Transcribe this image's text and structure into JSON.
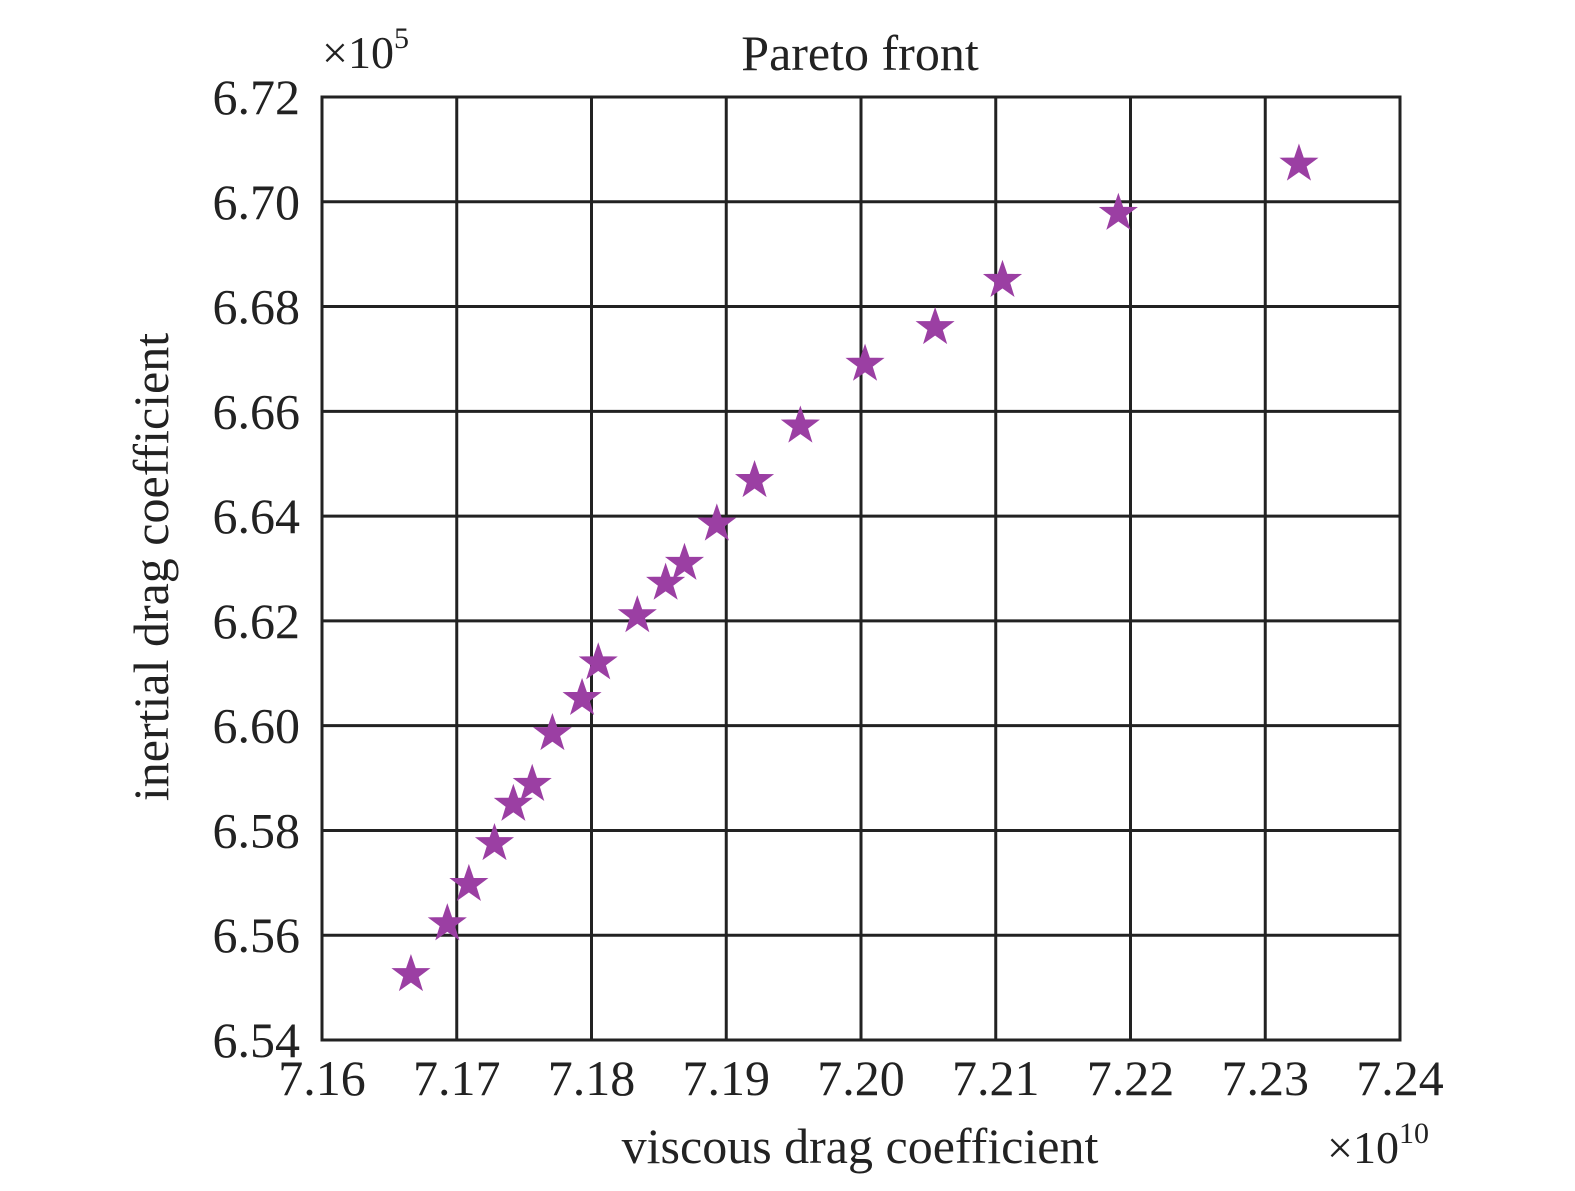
{
  "chart_data": {
    "type": "scatter",
    "title": "Pareto front",
    "xlabel": "viscous drag coefficient",
    "ylabel": "inertial drag coefficient",
    "x_multiplier": {
      "base": "×10",
      "exponent": "10"
    },
    "y_multiplier": {
      "base": "×10",
      "exponent": "5"
    },
    "xlim": [
      7.16,
      7.24
    ],
    "ylim": [
      6.54,
      6.72
    ],
    "x_ticks": [
      "7.16",
      "7.17",
      "7.18",
      "7.19",
      "7.20",
      "7.21",
      "7.22",
      "7.23",
      "7.24"
    ],
    "y_ticks": [
      "6.54",
      "6.56",
      "6.58",
      "6.60",
      "6.62",
      "6.64",
      "6.66",
      "6.68",
      "6.70",
      "6.72"
    ],
    "grid": true,
    "marker": "star",
    "marker_color": "#9b3fa3",
    "series": [
      {
        "points": [
          {
            "x": 7.1666,
            "y": 6.5525
          },
          {
            "x": 7.1693,
            "y": 6.5622
          },
          {
            "x": 7.1709,
            "y": 6.5697
          },
          {
            "x": 7.1728,
            "y": 6.5775
          },
          {
            "x": 7.1742,
            "y": 6.585
          },
          {
            "x": 7.1756,
            "y": 6.5888
          },
          {
            "x": 7.1771,
            "y": 6.5985
          },
          {
            "x": 7.1793,
            "y": 6.6052
          },
          {
            "x": 7.1805,
            "y": 6.612
          },
          {
            "x": 7.1834,
            "y": 6.621
          },
          {
            "x": 7.1855,
            "y": 6.6272
          },
          {
            "x": 7.1869,
            "y": 6.631
          },
          {
            "x": 7.1893,
            "y": 6.6385
          },
          {
            "x": 7.1921,
            "y": 6.6468
          },
          {
            "x": 7.1955,
            "y": 6.6572
          },
          {
            "x": 7.2003,
            "y": 6.669
          },
          {
            "x": 7.2055,
            "y": 6.676
          },
          {
            "x": 7.2105,
            "y": 6.685
          },
          {
            "x": 7.2191,
            "y": 6.6978
          },
          {
            "x": 7.2325,
            "y": 6.7072
          }
        ]
      }
    ]
  }
}
